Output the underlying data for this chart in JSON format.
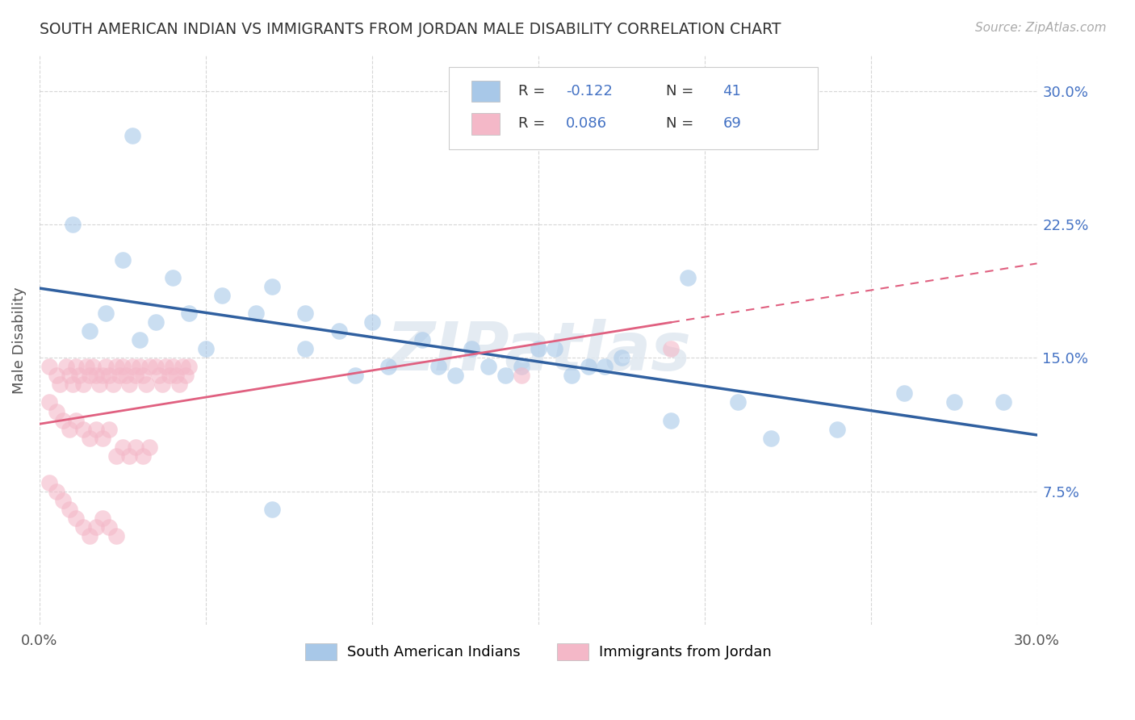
{
  "title": "SOUTH AMERICAN INDIAN VS IMMIGRANTS FROM JORDAN MALE DISABILITY CORRELATION CHART",
  "source_text": "Source: ZipAtlas.com",
  "ylabel": "Male Disability",
  "xlim": [
    0.0,
    0.3
  ],
  "ylim": [
    0.0,
    0.32
  ],
  "yticks_right": [
    0.075,
    0.15,
    0.225,
    0.3
  ],
  "legend_R1": "-0.122",
  "legend_N1": "41",
  "legend_R2": "0.086",
  "legend_N2": "69",
  "legend_label1": "South American Indians",
  "legend_label2": "Immigrants from Jordan",
  "blue_color": "#a8c8e8",
  "pink_color": "#f4b8c8",
  "blue_line_color": "#3060a0",
  "pink_line_color": "#e06080",
  "legend_text_color": "#4472c4",
  "watermark": "ZIPatlas",
  "background_color": "#ffffff",
  "grid_color": "#cccccc",
  "blue_scatter_x": [
    0.028,
    0.01,
    0.025,
    0.04,
    0.02,
    0.015,
    0.03,
    0.035,
    0.045,
    0.055,
    0.07,
    0.065,
    0.08,
    0.05,
    0.09,
    0.1,
    0.115,
    0.13,
    0.12,
    0.08,
    0.15,
    0.17,
    0.195,
    0.16,
    0.14,
    0.135,
    0.155,
    0.175,
    0.095,
    0.105,
    0.125,
    0.145,
    0.165,
    0.26,
    0.275,
    0.29,
    0.22,
    0.24,
    0.21,
    0.19,
    0.07
  ],
  "blue_scatter_y": [
    0.275,
    0.225,
    0.205,
    0.195,
    0.175,
    0.165,
    0.16,
    0.17,
    0.175,
    0.185,
    0.19,
    0.175,
    0.175,
    0.155,
    0.165,
    0.17,
    0.16,
    0.155,
    0.145,
    0.155,
    0.155,
    0.145,
    0.195,
    0.14,
    0.14,
    0.145,
    0.155,
    0.15,
    0.14,
    0.145,
    0.14,
    0.145,
    0.145,
    0.13,
    0.125,
    0.125,
    0.105,
    0.11,
    0.125,
    0.115,
    0.065
  ],
  "pink_scatter_x": [
    0.003,
    0.005,
    0.006,
    0.008,
    0.009,
    0.01,
    0.011,
    0.012,
    0.013,
    0.014,
    0.015,
    0.016,
    0.017,
    0.018,
    0.019,
    0.02,
    0.021,
    0.022,
    0.023,
    0.024,
    0.025,
    0.026,
    0.027,
    0.028,
    0.029,
    0.03,
    0.031,
    0.032,
    0.033,
    0.035,
    0.036,
    0.037,
    0.038,
    0.039,
    0.04,
    0.041,
    0.042,
    0.043,
    0.044,
    0.045,
    0.003,
    0.005,
    0.007,
    0.009,
    0.011,
    0.013,
    0.015,
    0.017,
    0.019,
    0.021,
    0.023,
    0.025,
    0.027,
    0.029,
    0.031,
    0.033,
    0.003,
    0.005,
    0.007,
    0.009,
    0.011,
    0.013,
    0.015,
    0.017,
    0.019,
    0.021,
    0.023,
    0.145,
    0.19
  ],
  "pink_scatter_y": [
    0.145,
    0.14,
    0.135,
    0.145,
    0.14,
    0.135,
    0.145,
    0.14,
    0.135,
    0.145,
    0.14,
    0.145,
    0.14,
    0.135,
    0.14,
    0.145,
    0.14,
    0.135,
    0.145,
    0.14,
    0.145,
    0.14,
    0.135,
    0.145,
    0.14,
    0.145,
    0.14,
    0.135,
    0.145,
    0.145,
    0.14,
    0.135,
    0.145,
    0.14,
    0.145,
    0.14,
    0.135,
    0.145,
    0.14,
    0.145,
    0.125,
    0.12,
    0.115,
    0.11,
    0.115,
    0.11,
    0.105,
    0.11,
    0.105,
    0.11,
    0.095,
    0.1,
    0.095,
    0.1,
    0.095,
    0.1,
    0.08,
    0.075,
    0.07,
    0.065,
    0.06,
    0.055,
    0.05,
    0.055,
    0.06,
    0.055,
    0.05,
    0.14,
    0.155
  ]
}
